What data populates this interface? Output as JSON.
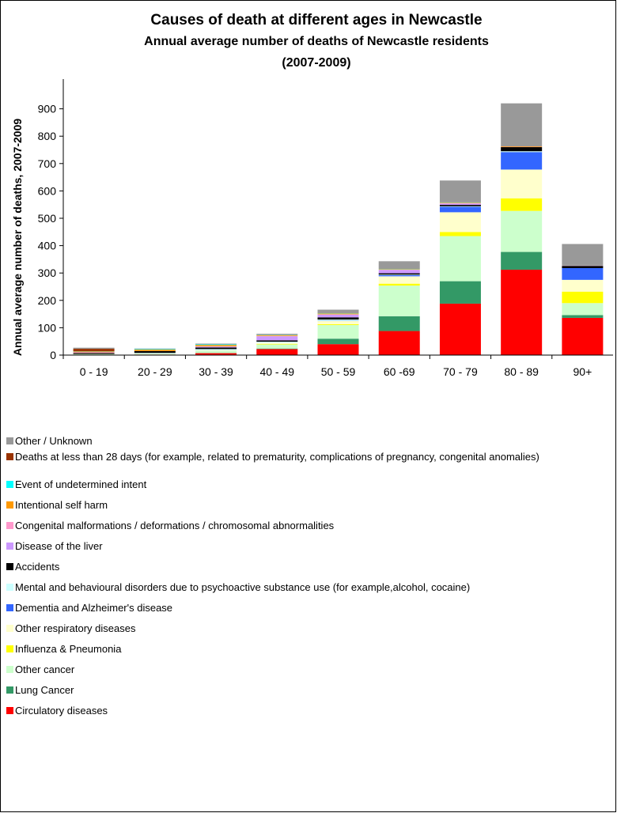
{
  "chart_data": {
    "type": "stacked_bar",
    "title": "Causes of death at different ages in Newcastle",
    "subtitle": "Annual average number of deaths of Newcastle residents",
    "subtitle2": "(2007-2009)",
    "y_label": "Annual average number of deaths, 2007-2009",
    "categories": [
      "0 - 19",
      "20 - 29",
      "30 - 39",
      "40 - 49",
      "50 - 59",
      "60 -69",
      "70 - 79",
      "80 - 89",
      "90+"
    ],
    "ylim": [
      0,
      1000
    ],
    "yticks": [
      0,
      100,
      200,
      300,
      400,
      500,
      600,
      700,
      800,
      900
    ],
    "series": [
      {
        "name": "Circulatory diseases",
        "color": "#ff0000",
        "values": [
          1,
          2,
          7,
          22,
          40,
          88,
          188,
          312,
          136
        ]
      },
      {
        "name": "Lung Cancer",
        "color": "#339966",
        "values": [
          0,
          0,
          1,
          2,
          20,
          54,
          82,
          65,
          10
        ]
      },
      {
        "name": "Other cancer",
        "color": "#ccffcc",
        "values": [
          2,
          3,
          8,
          15,
          50,
          112,
          165,
          150,
          44
        ]
      },
      {
        "name": "Influenza & Pneumonia",
        "color": "#ffff00",
        "values": [
          0,
          0,
          0,
          2,
          3,
          7,
          15,
          46,
          42
        ]
      },
      {
        "name": "Other respiratory diseases",
        "color": "#ffffcc",
        "values": [
          1,
          1,
          2,
          4,
          12,
          27,
          72,
          105,
          43
        ]
      },
      {
        "name": "Dementia and Alzheimer's disease",
        "color": "#3366ff",
        "values": [
          0,
          0,
          0,
          0,
          1,
          4,
          20,
          64,
          43
        ]
      },
      {
        "name": "Mental and behavioural disorders due to psychoactive substance use (for example,alcohol, cocaine)",
        "color": "#ccffff",
        "values": [
          0,
          2,
          4,
          4,
          4,
          2,
          2,
          3,
          0
        ]
      },
      {
        "name": "Accidents",
        "color": "#000000",
        "values": [
          4,
          7,
          6,
          5,
          8,
          5,
          5,
          15,
          8
        ]
      },
      {
        "name": "Disease of the liver",
        "color": "#cc99ff",
        "values": [
          0,
          0,
          3,
          15,
          10,
          12,
          4,
          0,
          0
        ]
      },
      {
        "name": "Congenital malformations / deformations / chromosomal abnormalities",
        "color": "#ff99cc",
        "values": [
          3,
          0,
          1,
          1,
          1,
          1,
          2,
          1,
          1
        ]
      },
      {
        "name": "Intentional self harm",
        "color": "#ff9900",
        "values": [
          2,
          5,
          5,
          3,
          3,
          2,
          2,
          2,
          0
        ]
      },
      {
        "name": "Event of undetermined intent",
        "color": "#00ffff",
        "values": [
          1,
          2,
          2,
          1,
          1,
          1,
          1,
          0,
          0
        ]
      },
      {
        "name": "Deaths at less than 28 days (for example, related to prematurity, complications of pregnancy, congenital anomalies)",
        "color": "#993300",
        "values": [
          9,
          0,
          0,
          0,
          0,
          0,
          0,
          0,
          0
        ]
      },
      {
        "name": "Other / Unknown",
        "color": "#999999",
        "values": [
          4,
          2,
          3,
          4,
          13,
          28,
          80,
          157,
          79
        ]
      }
    ]
  }
}
